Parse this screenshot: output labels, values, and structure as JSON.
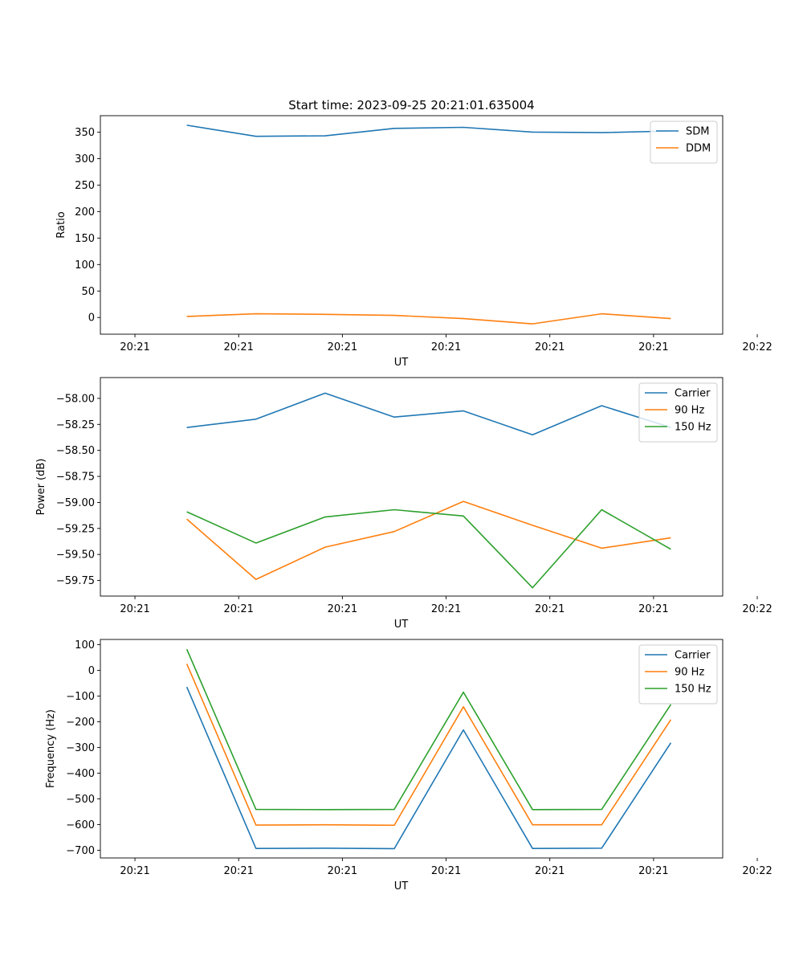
{
  "figure": {
    "suptitle": "Start time: 2023-09-25 20:21:01.635004"
  },
  "chart_data": [
    {
      "type": "line",
      "title": "Start time: 2023-09-25 20:21:01.635004",
      "xlabel": "UT",
      "ylabel": "Ratio",
      "xlim": [
        -0.5,
        8.5
      ],
      "ylim": [
        -31.5,
        381
      ],
      "x_tick_values": [
        0,
        1.5,
        3,
        4.5,
        6,
        7.5,
        9
      ],
      "x_tick_labels": [
        "20:21",
        "20:21",
        "20:21",
        "20:21",
        "20:21",
        "20:21",
        "20:22"
      ],
      "y_ticks": [
        0,
        50,
        100,
        150,
        200,
        250,
        300,
        350
      ],
      "y_tick_labels": [
        "0",
        "50",
        "100",
        "150",
        "200",
        "250",
        "300",
        "350"
      ],
      "legend": "top-right",
      "x": [
        0.75,
        1.75,
        2.75,
        3.75,
        4.75,
        5.75,
        6.75,
        7.75
      ],
      "series": [
        {
          "name": "SDM",
          "color": "#1f77b4",
          "values": [
            363,
            342,
            343,
            357,
            359,
            350,
            349,
            352
          ]
        },
        {
          "name": "DDM",
          "color": "#ff7f0e",
          "values": [
            2,
            7,
            6,
            4,
            -2,
            -12,
            7,
            -2
          ]
        }
      ]
    },
    {
      "type": "line",
      "title": "",
      "xlabel": "UT",
      "ylabel": "Power (dB)",
      "xlim": [
        -0.5,
        8.5
      ],
      "ylim": [
        -59.9,
        -57.8
      ],
      "x_tick_values": [
        0,
        1.5,
        3,
        4.5,
        6,
        7.5,
        9
      ],
      "x_tick_labels": [
        "20:21",
        "20:21",
        "20:21",
        "20:21",
        "20:21",
        "20:21",
        "20:22"
      ],
      "y_ticks": [
        -58.0,
        -58.25,
        -58.5,
        -58.75,
        -59.0,
        -59.25,
        -59.5,
        -59.75
      ],
      "y_tick_labels": [
        "−58.00",
        "−58.25",
        "−58.50",
        "−58.75",
        "−59.00",
        "−59.25",
        "−59.50",
        "−59.75"
      ],
      "legend": "top-right",
      "x": [
        0.75,
        1.75,
        2.75,
        3.75,
        4.75,
        5.75,
        6.75,
        7.75
      ],
      "series": [
        {
          "name": "Carrier",
          "color": "#1f77b4",
          "values": [
            -58.28,
            -58.2,
            -57.95,
            -58.18,
            -58.12,
            -58.35,
            -58.07,
            -58.28
          ]
        },
        {
          "name": "90 Hz",
          "color": "#ff7f0e",
          "values": [
            -59.16,
            -59.74,
            -59.43,
            -59.28,
            -58.99,
            -59.22,
            -59.44,
            -59.34
          ]
        },
        {
          "name": "150 Hz",
          "color": "#2ca02c",
          "values": [
            -59.09,
            -59.39,
            -59.14,
            -59.07,
            -59.13,
            -59.82,
            -59.07,
            -59.45
          ]
        }
      ]
    },
    {
      "type": "line",
      "title": "",
      "xlabel": "UT",
      "ylabel": "Frequency (Hz)",
      "xlim": [
        -0.5,
        8.5
      ],
      "ylim": [
        -730,
        120
      ],
      "x_tick_values": [
        0,
        1.5,
        3,
        4.5,
        6,
        7.5,
        9
      ],
      "x_tick_labels": [
        "20:21",
        "20:21",
        "20:21",
        "20:21",
        "20:21",
        "20:21",
        "20:22"
      ],
      "y_ticks": [
        100,
        0,
        -100,
        -200,
        -300,
        -400,
        -500,
        -600,
        -700
      ],
      "y_tick_labels": [
        "100",
        "0",
        "−100",
        "−200",
        "−300",
        "−400",
        "−500",
        "−600",
        "−700"
      ],
      "legend": "top-right",
      "x": [
        0.75,
        1.75,
        2.75,
        3.75,
        4.75,
        5.75,
        6.75,
        7.75
      ],
      "series": [
        {
          "name": "Carrier",
          "color": "#1f77b4",
          "values": [
            -65,
            -693,
            -692,
            -694,
            -232,
            -693,
            -692,
            -282
          ]
        },
        {
          "name": "90 Hz",
          "color": "#ff7f0e",
          "values": [
            25,
            -602,
            -601,
            -603,
            -142,
            -601,
            -601,
            -192
          ]
        },
        {
          "name": "150 Hz",
          "color": "#2ca02c",
          "values": [
            82,
            -541,
            -542,
            -541,
            -85,
            -542,
            -541,
            -133
          ]
        }
      ]
    }
  ]
}
